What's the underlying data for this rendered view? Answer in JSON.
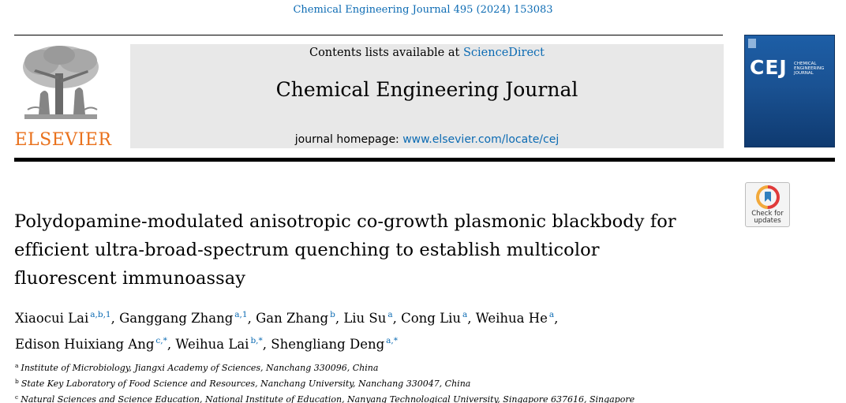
{
  "citation": "Chemical Engineering Journal 495 (2024) 153083",
  "publisher": {
    "name": "ELSEVIER",
    "logo_icon": "elsevier-tree-icon"
  },
  "banner": {
    "contents_prefix": "Contents lists available at ",
    "contents_link": "ScienceDirect",
    "journal_title": "Chemical Engineering Journal",
    "homepage_prefix": "journal homepage: ",
    "homepage_link": "www.elsevier.com/locate/cej"
  },
  "cover": {
    "abbr": "CEJ",
    "name_lines": [
      "CHEMICAL",
      "ENGINEERING",
      "JOURNAL"
    ],
    "color": "#1a5293"
  },
  "check_updates": {
    "line1": "Check for",
    "line2": "updates",
    "icon": "check-for-updates-icon"
  },
  "title_lines": [
    "Polydopamine-modulated anisotropic co-growth plasmonic blackbody for",
    "efficient ultra-broad-spectrum quenching to establish multicolor",
    "fluorescent immunoassay"
  ],
  "author_lines": [
    [
      {
        "name": "Xiaocui Lai",
        "marks": "a,b,1",
        "sep": ","
      },
      {
        "name": "Ganggang Zhang",
        "marks": "a,1",
        "sep": ","
      },
      {
        "name": "Gan Zhang",
        "marks": "b",
        "sep": ","
      },
      {
        "name": "Liu Su",
        "marks": "a",
        "sep": ","
      },
      {
        "name": "Cong Liu",
        "marks": "a",
        "sep": ","
      },
      {
        "name": "Weihua He",
        "marks": "a",
        "sep": ","
      }
    ],
    [
      {
        "name": "Edison Huixiang Ang",
        "marks": "c,*",
        "sep": ","
      },
      {
        "name": "Weihua Lai",
        "marks": "b,*",
        "sep": ","
      },
      {
        "name": "Shengliang Deng",
        "marks": "a,*",
        "sep": ""
      }
    ]
  ],
  "affiliations": [
    {
      "mark": "a",
      "text": "Institute of Microbiology, Jiangxi Academy of Sciences, Nanchang 330096, China"
    },
    {
      "mark": "b",
      "text": "State Key Laboratory of Food Science and Resources, Nanchang University, Nanchang 330047, China"
    },
    {
      "mark": "c",
      "text": "Natural Sciences and Science Education, National Institute of Education, Nanyang Technological University, Singapore 637616, Singapore"
    }
  ],
  "colors": {
    "link": "#0c6bb3",
    "publisher": "#e9711c",
    "banner_bg": "#e8e8e8"
  }
}
